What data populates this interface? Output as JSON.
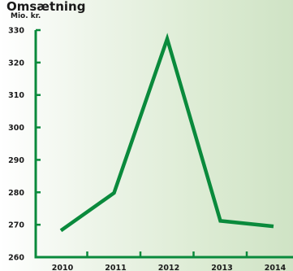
{
  "chart_data": {
    "type": "line",
    "title": "Omsætning",
    "ylabel": "Mio. kr.",
    "xlabel": "",
    "x": [
      "2010",
      "2011",
      "2012",
      "2013",
      "2014"
    ],
    "series": [
      {
        "values": [
          268.2,
          279.8,
          327.3,
          271.2,
          269.5
        ]
      }
    ],
    "ylim": [
      260,
      330
    ],
    "yticks": [
      260,
      270,
      280,
      290,
      300,
      310,
      320,
      330
    ],
    "grid": false,
    "legend": "none",
    "colors": {
      "line": "#0a8a3c",
      "axis": "#0a8a3c",
      "text": "#1a1a1a"
    }
  }
}
